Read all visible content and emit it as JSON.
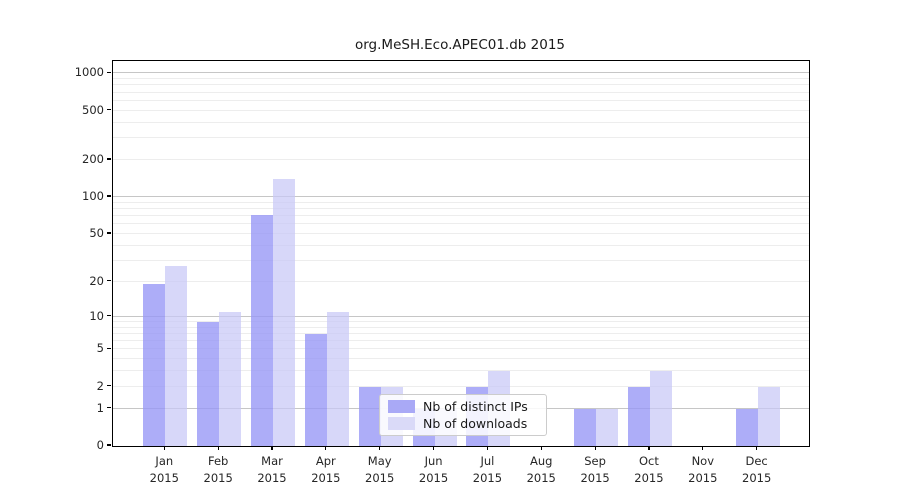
{
  "chart_data": {
    "type": "bar",
    "title": "org.MeSH.Eco.APEC01.db 2015",
    "categories": [
      "Jan",
      "Feb",
      "Mar",
      "Apr",
      "May",
      "Jun",
      "Jul",
      "Aug",
      "Sep",
      "Oct",
      "Nov",
      "Dec"
    ],
    "year_label": "2015",
    "series": [
      {
        "name": "Nb of distinct IPs",
        "color": "rgba(150,150,246,0.78)",
        "solid_color": "#a9a9f6",
        "values": [
          19,
          9,
          72,
          7,
          2,
          1,
          2,
          0,
          1,
          2,
          0,
          1
        ]
      },
      {
        "name": "Nb of downloads",
        "color": "rgba(200,200,247,0.72)",
        "solid_color": "#dadaf8",
        "values": [
          27,
          11,
          140,
          11,
          2,
          1,
          3,
          0,
          1,
          3,
          0,
          2
        ]
      }
    ],
    "yscale": "log1p",
    "ylim": [
      0,
      1258
    ],
    "y_ticks": [
      0,
      1,
      2,
      5,
      10,
      20,
      50,
      100,
      200,
      500,
      1000
    ],
    "grid_major": [
      1,
      10,
      100,
      1000
    ],
    "grid_minor": [
      2,
      3,
      4,
      5,
      6,
      7,
      8,
      9,
      20,
      30,
      40,
      50,
      60,
      70,
      80,
      90,
      200,
      300,
      400,
      500,
      600,
      700,
      800,
      900
    ],
    "grid": "on",
    "legend_position": "inside-lower-center"
  }
}
